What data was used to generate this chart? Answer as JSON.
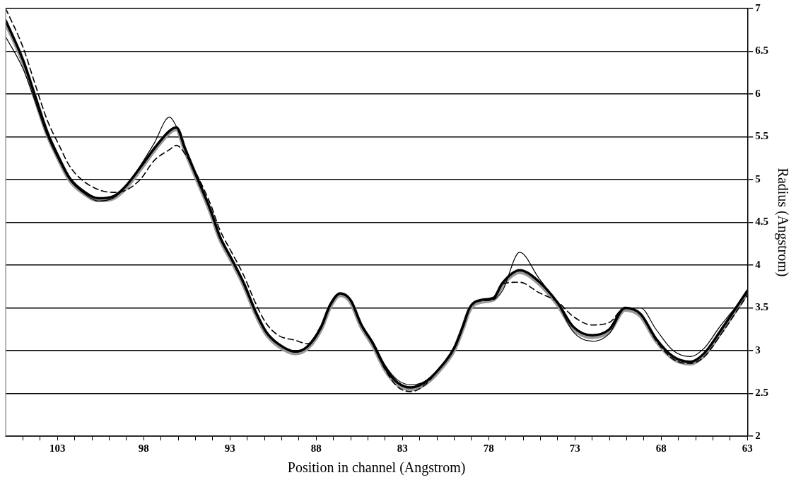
{
  "chart_data": {
    "type": "line",
    "xlabel": "Position in channel (Angstrom)",
    "ylabel": "Radius (Angstrom)",
    "x": [
      106,
      105,
      104.3,
      103.6,
      102.9,
      102.3,
      101.6,
      100.6,
      99.8,
      99.1,
      98.2,
      97.4,
      96.5,
      96.1,
      95.6,
      94.9,
      94.1,
      93.6,
      92.9,
      92.2,
      91.5,
      90.9,
      90.2,
      89.2,
      88.5,
      87.7,
      87.2,
      86.6,
      86.0,
      85.4,
      84.7,
      84.0,
      83.3,
      82.5,
      81.7,
      80.9,
      80.0,
      79.5,
      79.1,
      78.5,
      77.7,
      77.2,
      76.2,
      75.1,
      74.0,
      73.1,
      72.0,
      71.0,
      70.1,
      69.2,
      68.3,
      67.3,
      66.3,
      65.5,
      64.6,
      63
    ],
    "series": [
      {
        "color": "#999999",
        "values": [
          6.84,
          6.38,
          5.96,
          5.54,
          5.23,
          5.0,
          4.86,
          4.76,
          4.78,
          4.89,
          5.12,
          5.34,
          5.55,
          5.59,
          5.34,
          5.0,
          4.61,
          4.32,
          4.05,
          3.77,
          3.43,
          3.2,
          3.06,
          2.97,
          3.03,
          3.26,
          3.51,
          3.65,
          3.57,
          3.29,
          3.06,
          2.78,
          2.61,
          2.55,
          2.61,
          2.76,
          3.01,
          3.26,
          3.48,
          3.57,
          3.6,
          3.77,
          3.92,
          3.79,
          3.54,
          3.26,
          3.16,
          3.23,
          3.48,
          3.41,
          3.12,
          2.91,
          2.85,
          2.95,
          3.2,
          3.68
        ]
      },
      {
        "color": "#000000",
        "line_style": "solid",
        "values": [
          6.67,
          6.3,
          5.92,
          5.52,
          5.22,
          5.0,
          4.86,
          4.75,
          4.78,
          4.9,
          5.16,
          5.42,
          5.73,
          5.62,
          5.38,
          5.04,
          4.65,
          4.36,
          4.08,
          3.8,
          3.46,
          3.22,
          3.08,
          2.98,
          3.04,
          3.28,
          3.53,
          3.67,
          3.59,
          3.32,
          3.1,
          2.83,
          2.66,
          2.6,
          2.64,
          2.78,
          3.03,
          3.28,
          3.5,
          3.59,
          3.6,
          3.7,
          4.15,
          3.85,
          3.55,
          3.22,
          3.11,
          3.2,
          3.49,
          3.5,
          3.25,
          3.0,
          2.93,
          3.03,
          3.28,
          3.67
        ]
      },
      {
        "color": "#000000",
        "line_style": "dashed",
        "values": [
          7.0,
          6.55,
          6.12,
          5.7,
          5.4,
          5.16,
          5.0,
          4.88,
          4.85,
          4.87,
          5.0,
          5.22,
          5.35,
          5.4,
          5.3,
          5.05,
          4.7,
          4.42,
          4.15,
          3.88,
          3.55,
          3.32,
          3.18,
          3.12,
          3.08,
          3.3,
          3.53,
          3.66,
          3.58,
          3.3,
          3.07,
          2.78,
          2.58,
          2.52,
          2.6,
          2.78,
          3.03,
          3.28,
          3.5,
          3.58,
          3.6,
          3.78,
          3.8,
          3.68,
          3.57,
          3.4,
          3.3,
          3.33,
          3.5,
          3.42,
          3.12,
          2.9,
          2.85,
          2.93,
          3.17,
          3.65
        ]
      },
      {
        "color": "#000000",
        "line_style": "solid",
        "values": [
          6.86,
          6.4,
          5.98,
          5.56,
          5.25,
          5.02,
          4.88,
          4.78,
          4.8,
          4.91,
          5.14,
          5.36,
          5.57,
          5.61,
          5.36,
          5.02,
          4.63,
          4.34,
          4.07,
          3.79,
          3.45,
          3.22,
          3.08,
          2.99,
          3.05,
          3.28,
          3.53,
          3.67,
          3.59,
          3.31,
          3.08,
          2.8,
          2.63,
          2.57,
          2.63,
          2.78,
          3.03,
          3.28,
          3.5,
          3.59,
          3.62,
          3.79,
          3.94,
          3.81,
          3.56,
          3.28,
          3.18,
          3.25,
          3.5,
          3.43,
          3.14,
          2.93,
          2.87,
          2.97,
          3.22,
          3.7
        ]
      }
    ],
    "xlim": [
      106,
      63
    ],
    "xticks": [
      {
        "value": 105,
        "label": null
      },
      {
        "value": 104,
        "label": null
      },
      103,
      {
        "value": 102,
        "label": null
      },
      {
        "value": 101,
        "label": null
      },
      {
        "value": 100,
        "label": null
      },
      {
        "value": 99,
        "label": null
      },
      98,
      {
        "value": 97,
        "label": null
      },
      {
        "value": 96,
        "label": null
      },
      {
        "value": 95,
        "label": null
      },
      {
        "value": 94,
        "label": null
      },
      93,
      {
        "value": 92,
        "label": null
      },
      {
        "value": 91,
        "label": null
      },
      {
        "value": 90,
        "label": null
      },
      {
        "value": 89,
        "label": null
      },
      88,
      {
        "value": 87,
        "label": null
      },
      {
        "value": 86,
        "label": null
      },
      {
        "value": 85,
        "label": null
      },
      {
        "value": 84,
        "label": null
      },
      83,
      {
        "value": 82,
        "label": null
      },
      {
        "value": 81,
        "label": null
      },
      {
        "value": 80,
        "label": null
      },
      {
        "value": 79,
        "label": null
      },
      78,
      {
        "value": 77,
        "label": null
      },
      {
        "value": 76,
        "label": null
      },
      {
        "value": 75,
        "label": null
      },
      {
        "value": 74,
        "label": null
      },
      73,
      {
        "value": 72,
        "label": null
      },
      {
        "value": 71,
        "label": null
      },
      {
        "value": 70,
        "label": null
      },
      {
        "value": 69,
        "label": null
      },
      68,
      {
        "value": 67,
        "label": null
      },
      {
        "value": 66,
        "label": null
      },
      {
        "value": 65,
        "label": null
      },
      {
        "value": 64,
        "label": null
      },
      63
    ],
    "ylim": [
      2,
      7
    ],
    "yticks": [
      2,
      2.5,
      3,
      3.5,
      4,
      4.5,
      5,
      5.5,
      6,
      6.5,
      7
    ],
    "grid": "y",
    "legend": false,
    "marker": "none"
  }
}
